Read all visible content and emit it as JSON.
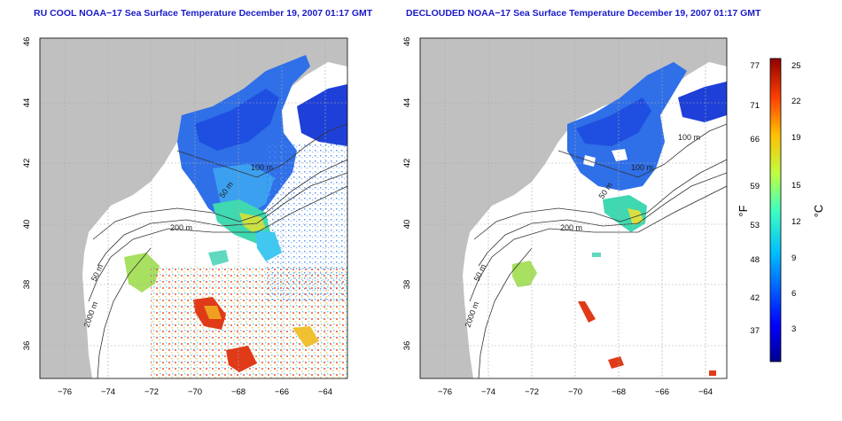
{
  "panels": [
    {
      "title": "RU COOL NOAA−17 Sea Surface Temperature December 19, 2007 01:17 GMT",
      "x_ticks": [
        "−76",
        "−74",
        "−72",
        "−70",
        "−68",
        "−66",
        "−64"
      ],
      "y_ticks": [
        "46",
        "44",
        "42",
        "40",
        "38",
        "36"
      ],
      "contours": [
        "100 m",
        "50 m",
        "200 m",
        "50 m",
        "2000 m"
      ]
    },
    {
      "title": "DECLOUDED NOAA−17 Sea Surface Temperature December 19, 2007 01:17 GMT",
      "x_ticks": [
        "−76",
        "−74",
        "−72",
        "−70",
        "−68",
        "−66",
        "−64"
      ],
      "y_ticks": [
        "46",
        "44",
        "42",
        "40",
        "38",
        "36"
      ],
      "contours": [
        "100 m",
        "100 m",
        "50 m",
        "200 m",
        "50 m",
        "2000 m"
      ]
    }
  ],
  "colorbar": {
    "f_label": "°F",
    "c_label": "°C",
    "f_ticks": [
      "77",
      "71",
      "66",
      "59",
      "53",
      "48",
      "42",
      "37"
    ],
    "c_ticks": [
      "25",
      "22",
      "19",
      "15",
      "12",
      "9",
      "6",
      "3"
    ]
  },
  "colors": {
    "land": "#c0c0c0",
    "title": "#1a1ac8",
    "grid": "#aaaaaa"
  }
}
